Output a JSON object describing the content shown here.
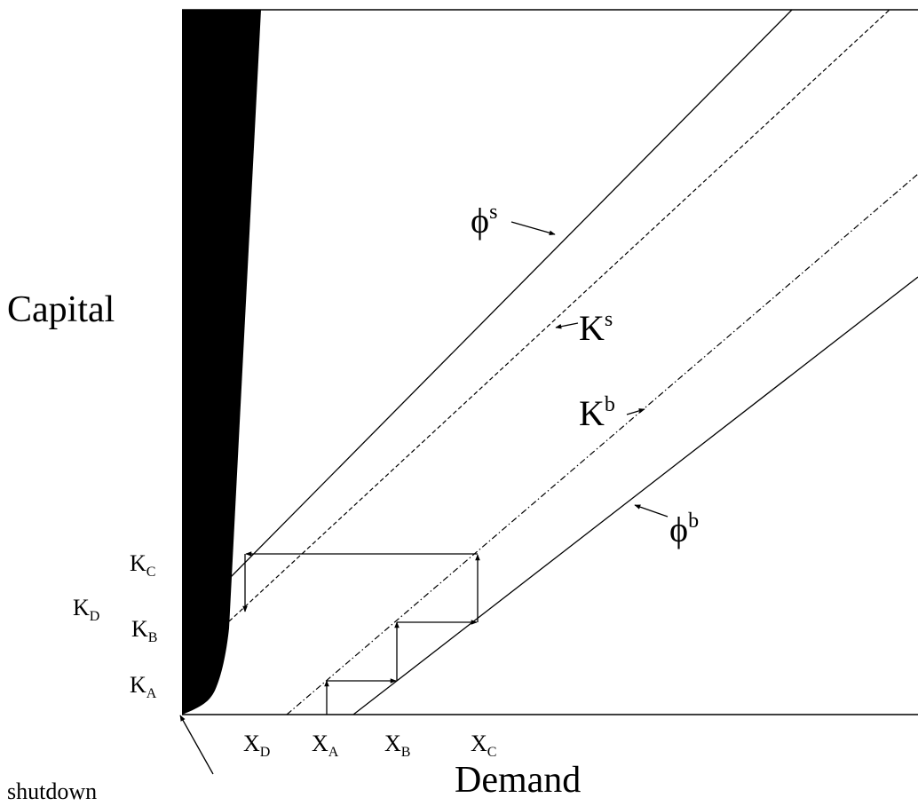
{
  "axes": {
    "y_label": "Capital",
    "x_label": "Demand"
  },
  "shutdown_label": "shutdown",
  "curves": {
    "phi_s": {
      "base": "ϕ",
      "sup": "s"
    },
    "K_s": {
      "base": "K",
      "sup": "s"
    },
    "K_b": {
      "base": "K",
      "sup": "b"
    },
    "phi_b": {
      "base": "ϕ",
      "sup": "b"
    }
  },
  "y_ticks": {
    "K_C": {
      "base": "K",
      "sub": "C"
    },
    "K_D": {
      "base": "K",
      "sub": "D"
    },
    "K_B": {
      "base": "K",
      "sub": "B"
    },
    "K_A": {
      "base": "K",
      "sub": "A"
    }
  },
  "x_ticks": {
    "X_D": {
      "base": "X",
      "sub": "D"
    },
    "X_A": {
      "base": "X",
      "sub": "A"
    },
    "X_B": {
      "base": "X",
      "sub": "B"
    },
    "X_C": {
      "base": "X",
      "sub": "C"
    }
  },
  "colors": {
    "ink": "#000000",
    "background": "#ffffff"
  }
}
